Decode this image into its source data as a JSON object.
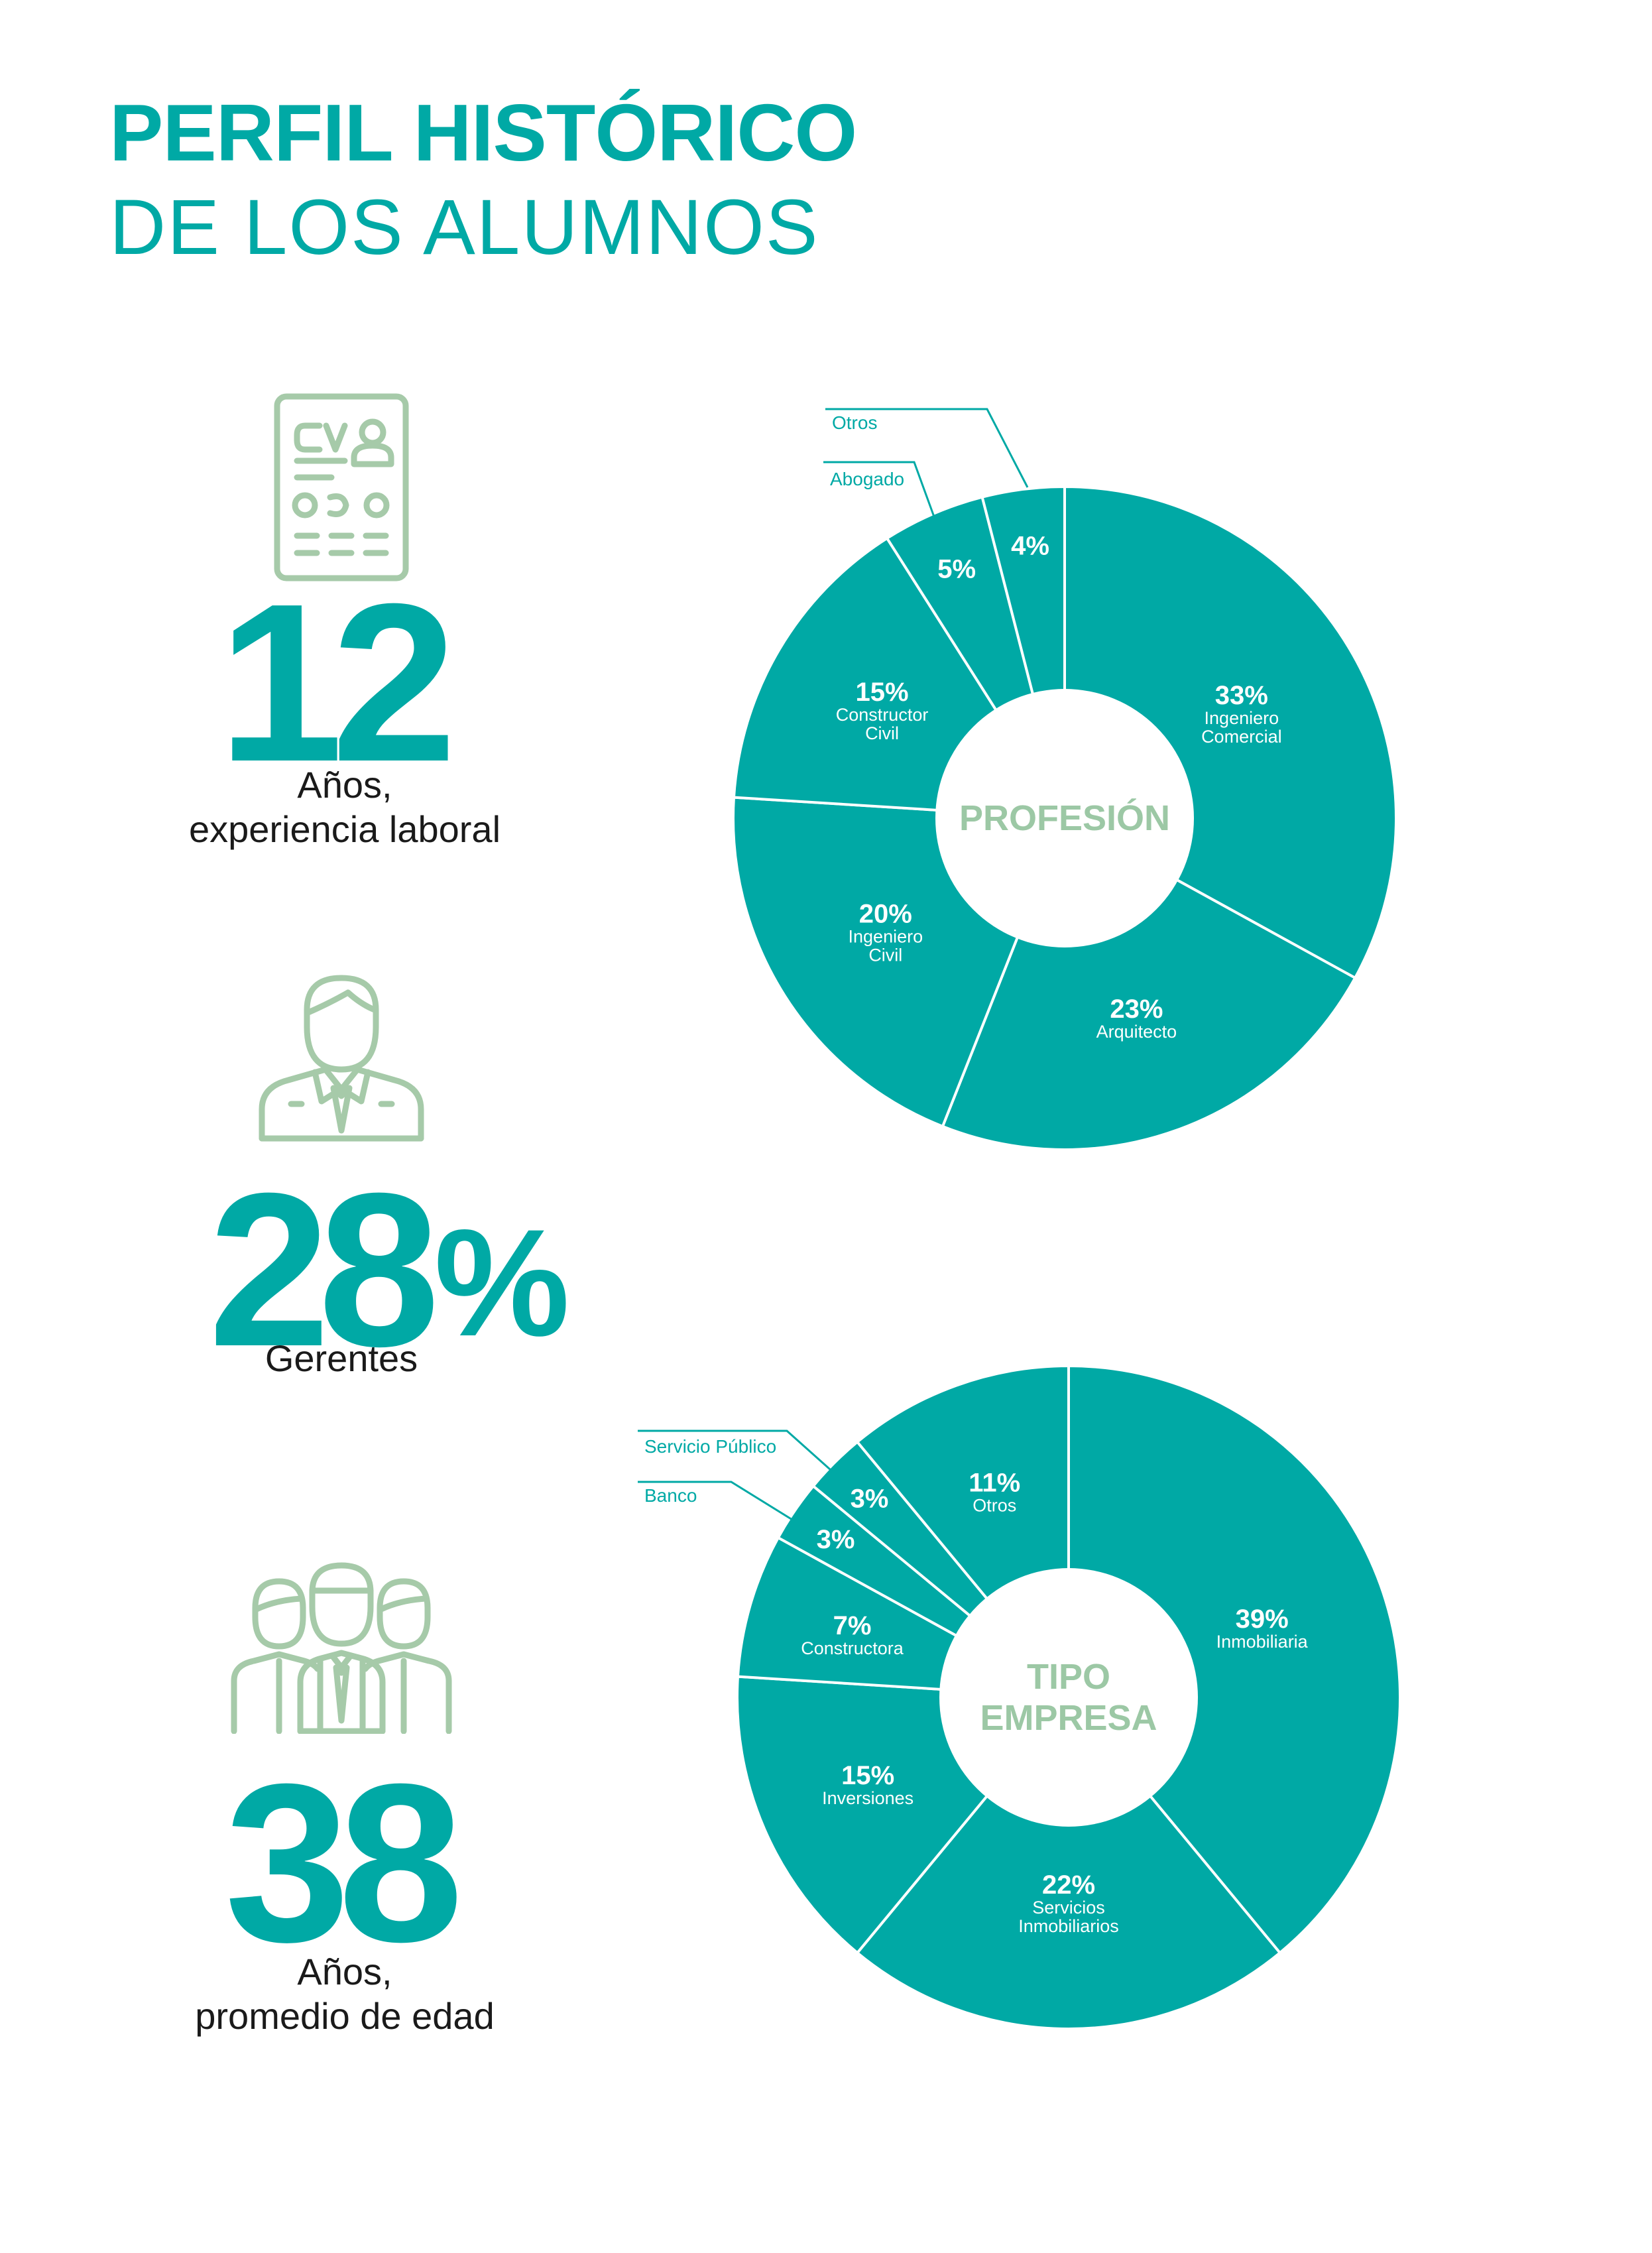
{
  "title": {
    "line1": "PERFIL HISTÓRICO",
    "line2": "DE LOS ALUMNOS"
  },
  "stats": {
    "experience": {
      "value": "12",
      "caption_line1": "Años,",
      "caption_line2": "experiencia laboral",
      "icon": "cv-icon"
    },
    "managers": {
      "value": "28",
      "suffix": "%",
      "caption": "Gerentes",
      "icon": "manager-icon"
    },
    "age": {
      "value": "38",
      "caption_line1": "Años,",
      "caption_line2": "promedio de edad",
      "icon": "team-icon"
    }
  },
  "colors": {
    "accent": "#00a9a5",
    "icon": "#a6caa9",
    "center_title": "#9cc8a5",
    "text": "#1a1a1a"
  },
  "chart_data": [
    {
      "type": "pie",
      "title": "PROFESIÓN",
      "categories": [
        "Ingeniero Comercial",
        "Arquitecto",
        "Ingeniero Civil",
        "Constructor Civil",
        "Abogado",
        "Otros"
      ],
      "values": [
        33,
        23,
        20,
        15,
        5,
        4
      ],
      "labels": [
        {
          "pct": "33%",
          "lines": [
            "Ingeniero",
            "Comercial"
          ]
        },
        {
          "pct": "23%",
          "lines": [
            "Arquitecto"
          ]
        },
        {
          "pct": "20%",
          "lines": [
            "Ingeniero",
            "Civil"
          ]
        },
        {
          "pct": "15%",
          "lines": [
            "Constructor",
            "Civil"
          ]
        },
        {
          "pct": "5%",
          "lines": []
        },
        {
          "pct": "4%",
          "lines": []
        }
      ],
      "callouts": [
        "Otros",
        "Abogado"
      ]
    },
    {
      "type": "pie",
      "title": [
        "TIPO",
        "EMPRESA"
      ],
      "categories": [
        "Inmobiliaria",
        "Servicios Inmobiliarios",
        "Inversiones",
        "Constructora",
        "Banco",
        "Servicio Público",
        "Otros"
      ],
      "values": [
        39,
        22,
        15,
        7,
        3,
        3,
        11
      ],
      "labels": [
        {
          "pct": "39%",
          "lines": [
            "Inmobiliaria"
          ]
        },
        {
          "pct": "22%",
          "lines": [
            "Servicios",
            "Inmobiliarios"
          ]
        },
        {
          "pct": "15%",
          "lines": [
            "Inversiones"
          ]
        },
        {
          "pct": "7%",
          "lines": [
            "Constructora"
          ]
        },
        {
          "pct": "3%",
          "lines": []
        },
        {
          "pct": "3%",
          "lines": []
        },
        {
          "pct": "11%",
          "lines": [
            "Otros"
          ]
        }
      ],
      "callouts": [
        "Servicio Público",
        "Banco"
      ]
    }
  ]
}
